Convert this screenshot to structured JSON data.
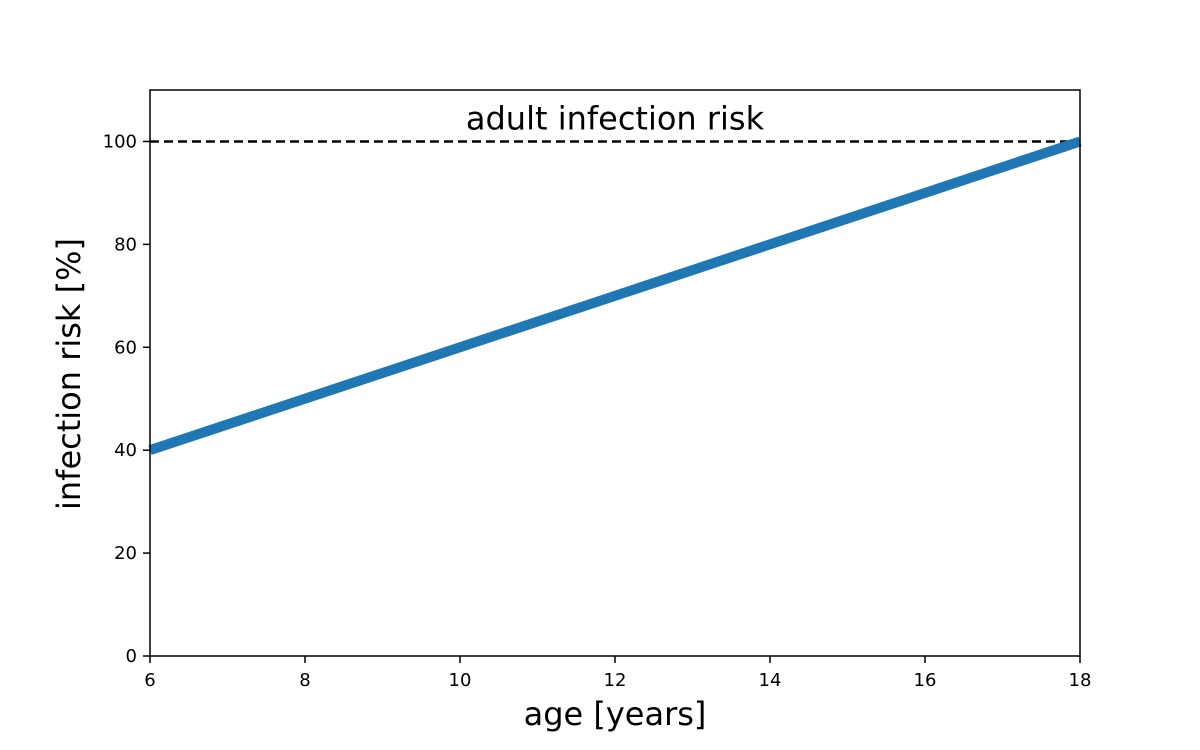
{
  "chart_data": {
    "type": "line",
    "title": "",
    "xlabel": "age [years]",
    "ylabel": "infection risk [%]",
    "xlim": [
      6,
      18
    ],
    "ylim": [
      0,
      110
    ],
    "xticks": [
      6,
      8,
      10,
      12,
      14,
      16,
      18
    ],
    "yticks": [
      0,
      20,
      40,
      60,
      80,
      100
    ],
    "grid": false,
    "series": [
      {
        "x": [
          6,
          18
        ],
        "y": [
          40,
          100
        ],
        "color": "#1f77b4",
        "style": "solid"
      }
    ],
    "reference_lines": [
      {
        "orientation": "horizontal",
        "y": 100,
        "color": "#000000",
        "style": "dashed"
      }
    ],
    "annotations": [
      {
        "text": "adult infection risk",
        "x": 12,
        "y": 104.5
      }
    ]
  }
}
